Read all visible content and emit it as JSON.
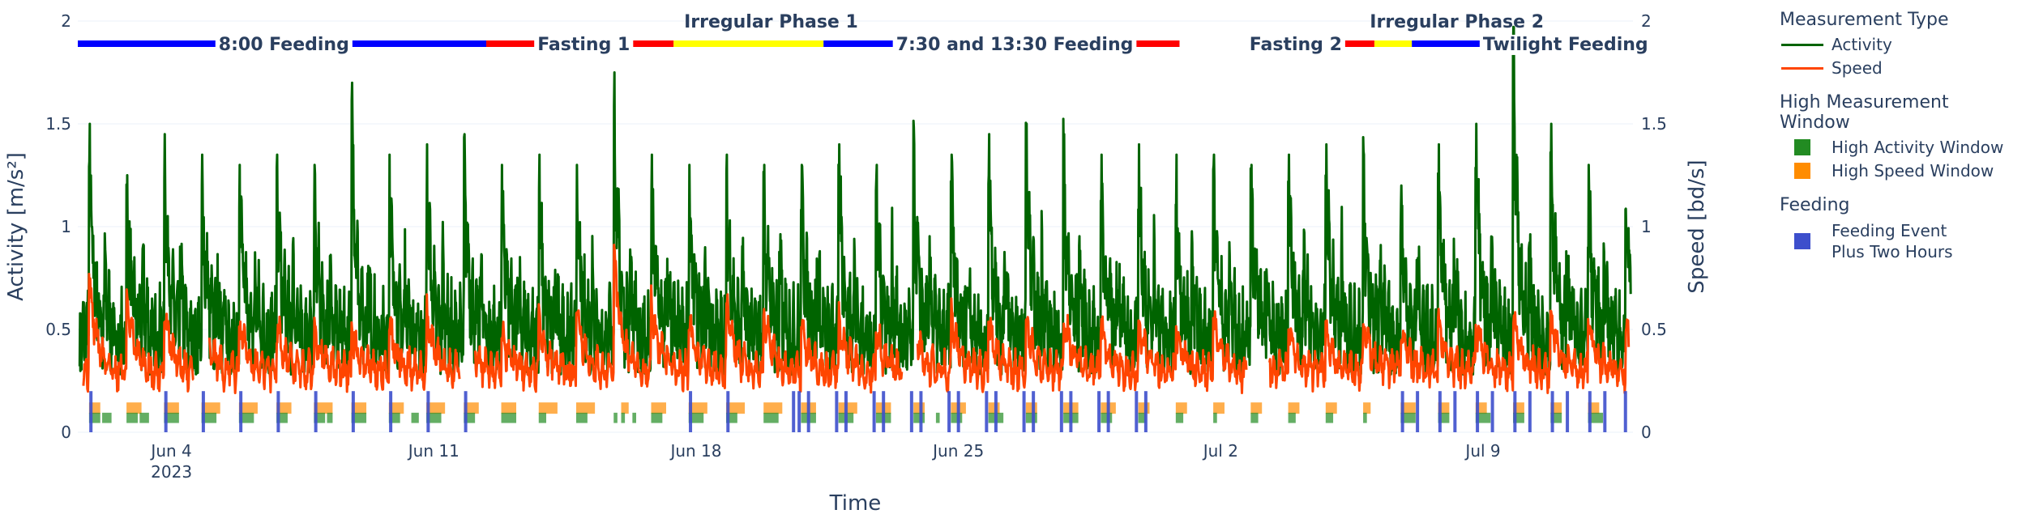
{
  "chart_data": {
    "type": "line",
    "title": "",
    "xlabel": "Time",
    "ylabel_left": "Activity [m/s²]",
    "ylabel_right": "Speed [bd/s]",
    "x_range_days": [
      0,
      41.5
    ],
    "x_start_date": "2023-06-01T12:00",
    "x_ticks": [
      {
        "day": 2.5,
        "label": "Jun 4",
        "sublabel": "2023"
      },
      {
        "day": 9.5,
        "label": "Jun 11",
        "sublabel": ""
      },
      {
        "day": 16.5,
        "label": "Jun 18",
        "sublabel": ""
      },
      {
        "day": 23.5,
        "label": "Jun 25",
        "sublabel": ""
      },
      {
        "day": 30.5,
        "label": "Jul 2",
        "sublabel": ""
      },
      {
        "day": 37.5,
        "label": "Jul 9",
        "sublabel": ""
      }
    ],
    "y_left": {
      "range": [
        0,
        2
      ],
      "ticks": [
        0,
        0.5,
        1,
        1.5,
        2
      ],
      "tick_labels": [
        "0",
        "0.5",
        "1",
        "1.5",
        "2"
      ]
    },
    "y_right": {
      "range": [
        0,
        2
      ],
      "ticks": [
        0,
        0.5,
        1,
        1.5,
        2
      ],
      "tick_labels": [
        "0",
        "0.5",
        "1",
        "1.5",
        "2"
      ]
    },
    "series": [
      {
        "name": "Activity",
        "axis": "left",
        "color": "#006400",
        "daily_peaks": [
          1.5,
          1.25,
          1.45,
          1.35,
          1.3,
          1.35,
          1.3,
          1.7,
          1.35,
          1.4,
          1.45,
          1.3,
          1.35,
          1.3,
          1.75,
          1.35,
          1.3,
          1.35,
          1.3,
          1.3,
          1.4,
          1.3,
          1.4,
          1.35,
          1.45,
          1.5,
          1.45,
          1.35,
          1.4,
          1.35,
          1.35,
          1.3,
          1.35,
          1.4,
          1.35,
          1.2,
          1.4,
          1.5,
          1.97,
          1.5,
          1.3
        ],
        "baseline": 0.45
      },
      {
        "name": "Speed",
        "axis": "right",
        "color": "#FF4500",
        "daily_peaks": [
          0.75,
          0.65,
          0.6,
          0.6,
          0.55,
          0.55,
          0.55,
          0.5,
          0.55,
          0.6,
          0.55,
          0.5,
          0.55,
          0.6,
          0.9,
          0.65,
          0.55,
          0.65,
          0.6,
          0.5,
          0.55,
          0.5,
          0.55,
          0.6,
          0.55,
          0.55,
          0.6,
          0.55,
          0.55,
          0.5,
          0.55,
          0.5,
          0.5,
          0.5,
          0.55,
          0.5,
          0.55,
          0.55,
          0.6,
          0.6,
          0.55
        ],
        "baseline": 0.3,
        "gaps_days": [
          [
            3.1,
            3.5
          ],
          [
            10.2,
            10.6
          ],
          [
            22.0,
            22.4
          ],
          [
            31.2,
            31.8
          ]
        ]
      }
    ],
    "phases": [
      {
        "label": "8:00 Feeding",
        "color": "#0000FF",
        "start": 0,
        "end": 10.9,
        "label_day": 5.5,
        "above": false
      },
      {
        "label": "Fasting 1",
        "color": "#FF0000",
        "start": 10.9,
        "end": 14.6,
        "label_day": 13.5,
        "above": false
      },
      {
        "label": "Irregular Phase 1",
        "color": "#FFFF00",
        "start": 14.6,
        "end": 20.4,
        "label_day": 18.5,
        "above": true
      },
      {
        "label": "7:30 and 13:30 Feeding",
        "color": "#0000FF",
        "start": 20.4,
        "end": 29.2,
        "label_day": 25.0,
        "above": false
      },
      {
        "label": "Fasting 2",
        "color": "#FF0000",
        "start": 29.2,
        "end": 36.2,
        "label_day": 32.5,
        "above": false
      },
      {
        "label": "Irregular Phase 2",
        "color": "#FFFF00",
        "start": 36.2,
        "end": 37.6,
        "label_day": 36.8,
        "above": true
      },
      {
        "label": "Twilight Feeding",
        "color": "#0000FF",
        "start": 37.6,
        "end": 41.5,
        "label_day": 39.7,
        "above": false
      }
    ],
    "phase_segments": [
      {
        "color": "#0000FF",
        "start": 0,
        "end": 10.9
      },
      {
        "color": "#FF0000",
        "start": 10.9,
        "end": 12.2
      },
      {
        "color": "#FF0000",
        "start": 14.6,
        "end": 15.9
      },
      {
        "color": "#FFFF00",
        "start": 15.9,
        "end": 19.9
      },
      {
        "color": "#0000FF",
        "start": 19.9,
        "end": 28.0
      },
      {
        "color": "#FF0000",
        "start": 28.0,
        "end": 29.4
      },
      {
        "color": "#FF0000",
        "start": 33.3,
        "end": 34.6
      },
      {
        "color": "#FFFF00",
        "start": 34.6,
        "end": 35.6
      },
      {
        "color": "#0000FF",
        "start": 35.6,
        "end": 41.5
      }
    ],
    "high_activity_windows_days": [
      [
        0.3,
        0.6
      ],
      [
        0.65,
        0.9
      ],
      [
        1.3,
        1.6
      ],
      [
        1.65,
        1.9
      ],
      [
        2.3,
        2.7
      ],
      [
        3.3,
        3.7
      ],
      [
        4.3,
        4.7
      ],
      [
        5.3,
        5.6
      ],
      [
        6.3,
        6.6
      ],
      [
        6.65,
        6.8
      ],
      [
        7.3,
        7.7
      ],
      [
        8.3,
        8.6
      ],
      [
        8.9,
        9.1
      ],
      [
        9.3,
        9.7
      ],
      [
        10.3,
        10.6
      ],
      [
        11.3,
        11.7
      ],
      [
        12.3,
        12.5
      ],
      [
        13.3,
        13.6
      ],
      [
        14.3,
        14.4
      ],
      [
        14.5,
        14.6
      ],
      [
        14.8,
        14.9
      ],
      [
        15.3,
        15.6
      ],
      [
        16.3,
        16.7
      ],
      [
        17.3,
        17.6
      ],
      [
        18.3,
        18.7
      ],
      [
        19.3,
        19.7
      ],
      [
        20.3,
        20.7
      ],
      [
        21.3,
        21.7
      ],
      [
        22.3,
        22.6
      ],
      [
        22.9,
        23.0
      ],
      [
        23.3,
        23.6
      ],
      [
        24.3,
        24.7
      ],
      [
        25.3,
        25.6
      ],
      [
        26.3,
        26.7
      ],
      [
        27.3,
        27.6
      ],
      [
        28.3,
        28.5
      ],
      [
        29.3,
        29.5
      ],
      [
        30.3,
        30.4
      ],
      [
        31.3,
        31.5
      ],
      [
        32.3,
        32.5
      ],
      [
        33.3,
        33.5
      ],
      [
        34.3,
        34.4
      ],
      [
        35.3,
        35.7
      ],
      [
        36.3,
        36.6
      ],
      [
        37.3,
        37.7
      ],
      [
        38.3,
        38.6
      ],
      [
        39.3,
        39.6
      ],
      [
        40.3,
        40.7
      ]
    ],
    "high_speed_windows_days": [
      [
        0.3,
        0.6
      ],
      [
        1.3,
        1.7
      ],
      [
        2.3,
        2.7
      ],
      [
        3.3,
        3.8
      ],
      [
        4.3,
        4.8
      ],
      [
        5.3,
        5.7
      ],
      [
        6.3,
        6.8
      ],
      [
        7.3,
        7.7
      ],
      [
        8.3,
        8.7
      ],
      [
        9.3,
        9.8
      ],
      [
        10.3,
        10.7
      ],
      [
        11.3,
        11.7
      ],
      [
        12.3,
        12.8
      ],
      [
        13.3,
        13.8
      ],
      [
        14.5,
        14.7
      ],
      [
        15.3,
        15.7
      ],
      [
        16.3,
        16.8
      ],
      [
        17.3,
        17.8
      ],
      [
        18.3,
        18.8
      ],
      [
        19.3,
        19.7
      ],
      [
        20.3,
        20.8
      ],
      [
        21.3,
        21.7
      ],
      [
        22.3,
        22.6
      ],
      [
        23.3,
        23.7
      ],
      [
        24.3,
        24.6
      ],
      [
        25.3,
        25.6
      ],
      [
        26.3,
        26.7
      ],
      [
        27.3,
        27.7
      ],
      [
        28.3,
        28.6
      ],
      [
        29.3,
        29.6
      ],
      [
        30.3,
        30.6
      ],
      [
        31.3,
        31.6
      ],
      [
        32.3,
        32.6
      ],
      [
        33.3,
        33.6
      ],
      [
        34.3,
        34.5
      ],
      [
        35.3,
        35.7
      ],
      [
        36.3,
        36.6
      ],
      [
        37.3,
        37.6
      ],
      [
        38.3,
        38.6
      ],
      [
        39.3,
        39.6
      ],
      [
        40.3,
        40.6
      ]
    ],
    "feeding_events_days": [
      0.35,
      2.35,
      3.35,
      4.35,
      5.35,
      6.35,
      7.35,
      8.35,
      9.35,
      10.35,
      16.35,
      17.35,
      19.1,
      19.25,
      19.5,
      20.25,
      20.5,
      21.25,
      21.5,
      22.25,
      22.5,
      23.25,
      23.5,
      24.25,
      24.5,
      25.25,
      25.5,
      26.25,
      26.5,
      27.25,
      27.5,
      28.25,
      28.5,
      35.35,
      35.75,
      36.35,
      36.75,
      37.35,
      37.75,
      38.35,
      38.75,
      39.35,
      39.75,
      40.35,
      40.75,
      41.3
    ],
    "legend": {
      "groups": [
        {
          "title": "Measurement Type",
          "items": [
            {
              "label": "Activity",
              "kind": "line",
              "color": "#006400"
            },
            {
              "label": "Speed",
              "kind": "line",
              "color": "#FF4500"
            }
          ]
        },
        {
          "title": "High Measurement Window",
          "items": [
            {
              "label": "High Activity Window",
              "kind": "box",
              "color": "#228B22"
            },
            {
              "label": "High Speed Window",
              "kind": "box",
              "color": "#FF8C00"
            }
          ]
        },
        {
          "title": "Feeding",
          "items": [
            {
              "label": "Feeding Event Plus Two Hours",
              "kind": "box",
              "color": "#3D4FCC"
            }
          ]
        }
      ]
    }
  }
}
